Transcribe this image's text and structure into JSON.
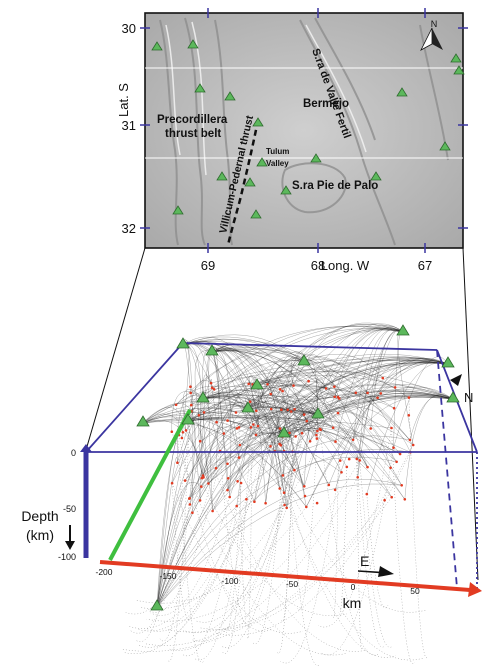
{
  "map": {
    "lat_axis_label": "Lat. S",
    "lon_axis_label": "Long. W",
    "lat_ticks": [
      "30",
      "31",
      "32"
    ],
    "lon_ticks": [
      "69",
      "68",
      "67"
    ],
    "north_label": "N",
    "regions": {
      "precordillera_line1": "Precordillera",
      "precordillera_line2": "thrust belt",
      "bermejo": "Bermejo",
      "valle_fertil": "S.ra de Valle Fertil",
      "tulum_line1": "Tulum",
      "tulum_line2": "Valley",
      "villicum": "Villicum-Pedernal thrust",
      "pie_de_palo": "S.ra Pie de Palo"
    },
    "colors": {
      "relief": "#bdbdbd",
      "station": "#5cb85c",
      "fault": "#111111"
    }
  },
  "box3d": {
    "depth_label_line1": "Depth",
    "depth_label_line2": "(km)",
    "depth_ticks": [
      "0",
      "-50",
      "-100"
    ],
    "x_ticks": [
      "-200",
      "-150",
      "-100",
      "-50",
      "0",
      "50"
    ],
    "x_axis_arrow_label": "E",
    "x_unit_label": "km",
    "north_label": "N",
    "colors": {
      "frame": "#3b35a0",
      "x_axis": "#e23b22",
      "y_axis": "#3fbf3f",
      "rays": "#1a1a1a",
      "events": "#e23b22"
    }
  }
}
